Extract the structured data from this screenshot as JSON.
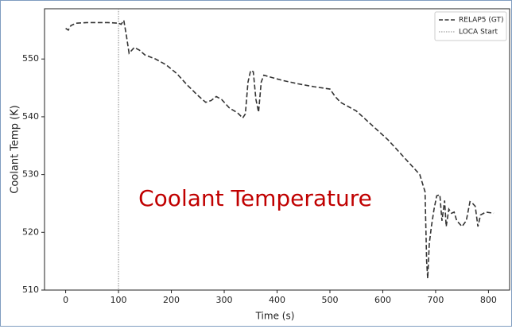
{
  "chart_data": {
    "type": "line",
    "xlabel": "Time (s)",
    "ylabel": "Coolant Temp (K)",
    "annotation": "Coolant Temperature",
    "xlim": [
      -40,
      840
    ],
    "xticks": [
      0,
      100,
      200,
      300,
      400,
      500,
      600,
      700,
      800
    ],
    "ylim": [
      510,
      558.7
    ],
    "yticks": [
      510,
      520,
      530,
      540,
      550
    ],
    "legend": "upper right",
    "vline": {
      "name": "LOCA Start",
      "x": 100,
      "color": "#888888"
    },
    "x": [
      0,
      5,
      10,
      20,
      40,
      60,
      80,
      100,
      105,
      110,
      115,
      120,
      125,
      130,
      140,
      150,
      170,
      190,
      210,
      230,
      250,
      265,
      275,
      285,
      295,
      310,
      325,
      335,
      340,
      345,
      350,
      355,
      360,
      365,
      370,
      375,
      390,
      410,
      440,
      470,
      500,
      510,
      520,
      550,
      580,
      610,
      640,
      670,
      680,
      683,
      685,
      688,
      692,
      697,
      702,
      708,
      712,
      717,
      720,
      725,
      730,
      735,
      740,
      750,
      758,
      765,
      770,
      775,
      780,
      785,
      795,
      810
    ],
    "series": [
      {
        "name": "RELAP5 (GT)",
        "color": "#333333",
        "values": [
          555.3,
          555,
          555.8,
          556.2,
          556.3,
          556.3,
          556.3,
          556.2,
          556,
          556.7,
          554,
          551,
          551.5,
          552,
          551.5,
          550.7,
          550,
          549,
          547.5,
          545.5,
          543.7,
          542.5,
          542.8,
          543.5,
          543,
          541.5,
          540.7,
          539.8,
          540.5,
          546,
          548,
          547.8,
          543,
          540.8,
          546,
          547.2,
          546.8,
          546.3,
          545.7,
          545.2,
          544.8,
          543.5,
          542.5,
          541,
          538.5,
          536,
          533,
          530,
          527,
          515,
          512,
          518,
          521,
          524,
          526.3,
          526.5,
          522,
          525.5,
          521,
          524,
          523.3,
          523.5,
          522,
          521,
          522,
          525.3,
          525,
          524.5,
          521,
          523,
          523.5,
          523.3
        ]
      }
    ]
  }
}
